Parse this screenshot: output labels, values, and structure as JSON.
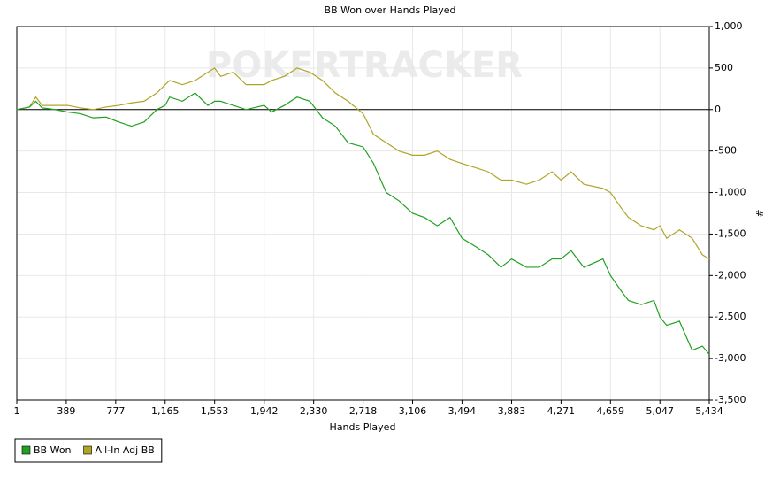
{
  "chart_data": {
    "type": "line",
    "title": "BB Won over Hands Played",
    "watermark": "POKERTRACKER",
    "x_label": "Hands Played",
    "y_label": "#",
    "x": [
      1,
      100,
      150,
      200,
      300,
      400,
      500,
      600,
      700,
      800,
      900,
      1000,
      1100,
      1165,
      1200,
      1300,
      1400,
      1500,
      1553,
      1600,
      1700,
      1800,
      1942,
      2000,
      2100,
      2200,
      2300,
      2400,
      2500,
      2600,
      2718,
      2800,
      2900,
      3000,
      3106,
      3200,
      3300,
      3400,
      3494,
      3600,
      3700,
      3800,
      3883,
      4000,
      4100,
      4200,
      4271,
      4350,
      4450,
      4600,
      4659,
      4750,
      4800,
      4900,
      5000,
      5047,
      5100,
      5200,
      5300,
      5380,
      5434
    ],
    "series": [
      {
        "name": "BB Won",
        "color": "#22a022",
        "values": [
          0,
          30,
          100,
          20,
          0,
          -30,
          -50,
          -100,
          -90,
          -150,
          -200,
          -150,
          0,
          50,
          150,
          100,
          200,
          50,
          100,
          100,
          50,
          0,
          50,
          -30,
          50,
          150,
          100,
          -100,
          -200,
          -400,
          -450,
          -650,
          -1000,
          -1100,
          -1250,
          -1300,
          -1400,
          -1300,
          -1550,
          -1650,
          -1750,
          -1900,
          -1800,
          -1900,
          -1900,
          -1800,
          -1800,
          -1700,
          -1900,
          -1800,
          -2000,
          -2200,
          -2300,
          -2350,
          -2300,
          -2500,
          -2600,
          -2550,
          -2900,
          -2850,
          -2950
        ]
      },
      {
        "name": "All-In Adj BB",
        "color": "#b0a428",
        "values": [
          0,
          30,
          150,
          50,
          50,
          50,
          20,
          0,
          30,
          50,
          80,
          100,
          200,
          300,
          350,
          300,
          350,
          450,
          500,
          400,
          450,
          300,
          300,
          350,
          400,
          500,
          450,
          350,
          200,
          100,
          -50,
          -300,
          -400,
          -500,
          -550,
          -550,
          -500,
          -600,
          -650,
          -700,
          -750,
          -850,
          -850,
          -900,
          -850,
          -750,
          -850,
          -750,
          -900,
          -950,
          -1000,
          -1200,
          -1300,
          -1400,
          -1450,
          -1400,
          -1550,
          -1450,
          -1550,
          -1750,
          -1800
        ]
      }
    ],
    "xlim": [
      1,
      5434
    ],
    "xticks": [
      1,
      389,
      777,
      {
        "value": 1165,
        "label": "1,165"
      },
      {
        "value": 1553,
        "label": "1,553"
      },
      {
        "value": 1942,
        "label": "1,942"
      },
      {
        "value": 2330,
        "label": "2,330"
      },
      {
        "value": 2718,
        "label": "2,718"
      },
      {
        "value": 3106,
        "label": "3,106"
      },
      {
        "value": 3494,
        "label": "3,494"
      },
      {
        "value": 3883,
        "label": "3,883"
      },
      {
        "value": 4271,
        "label": "4,271"
      },
      {
        "value": 4659,
        "label": "4,659"
      },
      {
        "value": 5047,
        "label": "5,047"
      },
      {
        "value": 5434,
        "label": "5,434"
      }
    ],
    "ylim": [
      -3500,
      1000
    ],
    "yticks": [
      {
        "value": -3500,
        "label": "-3,500"
      },
      {
        "value": -3000,
        "label": "-3,000"
      },
      {
        "value": -2500,
        "label": "-2,500"
      },
      {
        "value": -2000,
        "label": "-2,000"
      },
      {
        "value": -1500,
        "label": "-1,500"
      },
      {
        "value": -1000,
        "label": "-1,000"
      },
      -500,
      0,
      500,
      {
        "value": 1000,
        "label": "1,000"
      }
    ],
    "grid": true,
    "legend": "bottom-left"
  }
}
